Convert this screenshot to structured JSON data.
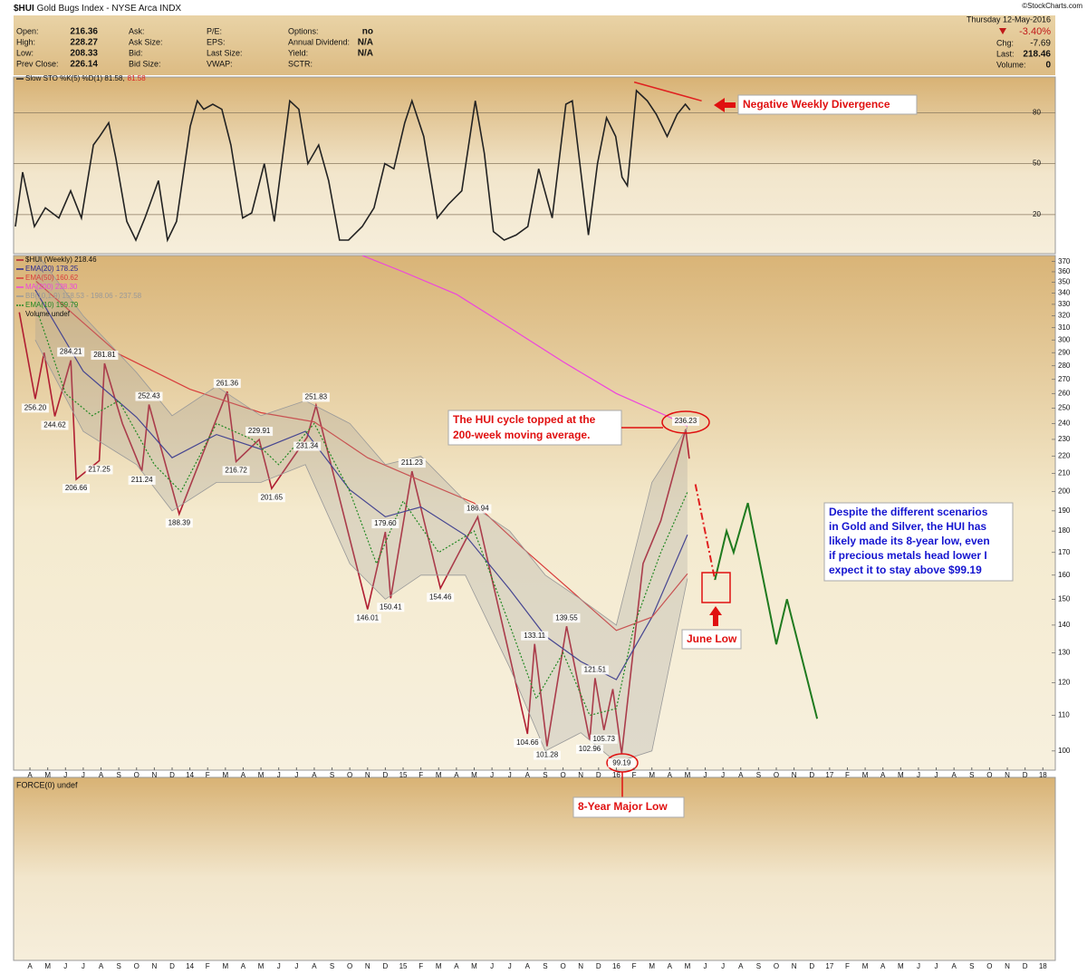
{
  "header": {
    "symbol": "$HUI",
    "title": "Gold Bugs Index - NYSE Arca INDX",
    "watermark": "©StockCharts.com",
    "fields": [
      [
        {
          "label": "Open:",
          "value": "216.36"
        },
        {
          "label": "High:",
          "value": "228.27"
        },
        {
          "label": "Low:",
          "value": "208.33"
        },
        {
          "label": "Prev Close:",
          "value": "226.14"
        }
      ],
      [
        {
          "label": "Ask:"
        },
        {
          "label": "Ask Size:"
        },
        {
          "label": "Bid:"
        },
        {
          "label": "Bid Size:"
        }
      ],
      [
        {
          "label": "P/E:"
        },
        {
          "label": "EPS:"
        },
        {
          "label": "Last Size:"
        },
        {
          "label": "VWAP:"
        }
      ],
      [
        {
          "label": "Options:",
          "value": "no"
        },
        {
          "label": "Annual Dividend:",
          "value": "N/A"
        },
        {
          "label": "Yield:",
          "value": "N/A"
        },
        {
          "label": "SCTR:"
        }
      ]
    ],
    "date": "Thursday 12-May-2016",
    "change_pct": "-3.40%",
    "chg_label": "Chg:",
    "chg": "-7.69",
    "last_label": "Last:",
    "last": "218.46",
    "volume_label": "Volume:",
    "volume": "0"
  },
  "chart_data": [
    {
      "type": "line",
      "xlim": [
        -0.92,
        57.7
      ],
      "ylim": [
        -3,
        101
      ],
      "yticks": [
        20,
        50,
        80
      ],
      "grid": true,
      "series": [
        {
          "name": "Slow STO %K(5) %D(1) 81.58,",
          "color": "#222222",
          "x": [
            -0.82,
            -0.41,
            0.25,
            0.87,
            1.63,
            2.29,
            2.9,
            3.57,
            3.92,
            4.43,
            4.84,
            5.45,
            5.96,
            6.47,
            7.23,
            7.74,
            8.25,
            9.02,
            9.42,
            9.78,
            10.29,
            10.8,
            11.31,
            11.97,
            12.48,
            13.19,
            13.75,
            14.62,
            15.13,
            15.64,
            16.25,
            16.81,
            17.42,
            17.93,
            18.7,
            19.36,
            19.97,
            20.48,
            21.09,
            21.5,
            22.16,
            22.92,
            23.54,
            24.3,
            25.06,
            25.57,
            26.08,
            26.69,
            27.36,
            28.02,
            28.63,
            29.39,
            30.16,
            30.52,
            31.43,
            31.94,
            32.45,
            32.96,
            33.32,
            33.62,
            34.13,
            34.74,
            35.25,
            35.86,
            36.42,
            36.88,
            37.14
          ],
          "values": [
            13,
            45,
            13,
            24,
            18,
            34,
            18,
            61,
            66,
            74,
            53,
            16,
            5,
            18,
            40,
            5,
            16,
            72,
            87,
            82,
            85,
            82,
            61,
            18,
            21,
            50,
            16,
            87,
            82,
            50,
            61,
            40,
            5,
            5,
            13,
            24,
            50,
            47,
            74,
            87,
            66,
            18,
            26,
            34,
            87,
            56,
            10,
            5,
            8,
            13,
            47,
            18,
            85,
            87,
            8,
            50,
            77,
            66,
            42,
            37,
            93,
            87,
            79,
            66,
            79,
            85,
            81.58
          ]
        }
      ],
      "signal": "81.58",
      "signal_color": "#dd2222",
      "divergence": {
        "color": "#e02020",
        "x": [
          34.0,
          37.8
        ],
        "values": [
          98,
          87
        ]
      },
      "annotation": "Negative Weekly Divergence"
    },
    {
      "type": "line",
      "log_scale": true,
      "xlim": [
        -0.92,
        57.7
      ],
      "ylim": [
        95,
        376
      ],
      "grid": false,
      "yticks": [
        100,
        110,
        120,
        130,
        140,
        150,
        160,
        170,
        180,
        190,
        200,
        210,
        220,
        230,
        240,
        250,
        260,
        270,
        280,
        290,
        300,
        310,
        320,
        330,
        340,
        350,
        360,
        370
      ],
      "xticks": [
        {
          "value": 0,
          "label": "A"
        },
        {
          "value": 1,
          "label": "M"
        },
        {
          "value": 2,
          "label": "J"
        },
        {
          "value": 3,
          "label": "J"
        },
        {
          "value": 4,
          "label": "A"
        },
        {
          "value": 5,
          "label": "S"
        },
        {
          "value": 6,
          "label": "O"
        },
        {
          "value": 7,
          "label": "N"
        },
        {
          "value": 8,
          "label": "D"
        },
        {
          "value": 9,
          "label": "14"
        },
        {
          "value": 10,
          "label": "F"
        },
        {
          "value": 11,
          "label": "M"
        },
        {
          "value": 12,
          "label": "A"
        },
        {
          "value": 13,
          "label": "M"
        },
        {
          "value": 14,
          "label": "J"
        },
        {
          "value": 15,
          "label": "J"
        },
        {
          "value": 16,
          "label": "A"
        },
        {
          "value": 17,
          "label": "S"
        },
        {
          "value": 18,
          "label": "O"
        },
        {
          "value": 19,
          "label": "N"
        },
        {
          "value": 20,
          "label": "D"
        },
        {
          "value": 21,
          "label": "15"
        },
        {
          "value": 22,
          "label": "F"
        },
        {
          "value": 23,
          "label": "M"
        },
        {
          "value": 24,
          "label": "A"
        },
        {
          "value": 25,
          "label": "M"
        },
        {
          "value": 26,
          "label": "J"
        },
        {
          "value": 27,
          "label": "J"
        },
        {
          "value": 28,
          "label": "A"
        },
        {
          "value": 29,
          "label": "S"
        },
        {
          "value": 30,
          "label": "O"
        },
        {
          "value": 31,
          "label": "N"
        },
        {
          "value": 32,
          "label": "D"
        },
        {
          "value": 33,
          "label": "16"
        },
        {
          "value": 34,
          "label": "F"
        },
        {
          "value": 35,
          "label": "M"
        },
        {
          "value": 36,
          "label": "A"
        },
        {
          "value": 37,
          "label": "M"
        },
        {
          "value": 38,
          "label": "J"
        },
        {
          "value": 39,
          "label": "J"
        },
        {
          "value": 40,
          "label": "A"
        },
        {
          "value": 41,
          "label": "S"
        },
        {
          "value": 42,
          "label": "O"
        },
        {
          "value": 43,
          "label": "N"
        },
        {
          "value": 44,
          "label": "D"
        },
        {
          "value": 45,
          "label": "17"
        },
        {
          "value": 46,
          "label": "F"
        },
        {
          "value": 47,
          "label": "M"
        },
        {
          "value": 48,
          "label": "A"
        },
        {
          "value": 49,
          "label": "M"
        },
        {
          "value": 50,
          "label": "J"
        },
        {
          "value": 51,
          "label": "J"
        },
        {
          "value": 52,
          "label": "A"
        },
        {
          "value": 53,
          "label": "S"
        },
        {
          "value": 54,
          "label": "O"
        },
        {
          "value": 55,
          "label": "N"
        },
        {
          "value": 56,
          "label": "D"
        },
        {
          "value": 57,
          "label": "18"
        }
      ],
      "series": [
        {
          "name": "$HUI (Weekly) 218.46",
          "color": "#b01e32",
          "x": [
            -0.6,
            0.3,
            0.8,
            1.4,
            2.3,
            2.6,
            3.9,
            4.2,
            5.2,
            6.3,
            6.7,
            8.4,
            11.1,
            11.6,
            12.9,
            13.6,
            15.6,
            16.1,
            19.0,
            20.0,
            20.3,
            21.5,
            23.1,
            25.2,
            28.0,
            28.4,
            29.1,
            30.2,
            31.5,
            31.8,
            32.3,
            32.8,
            33.3,
            34.5,
            35.5,
            36.9,
            37.1
          ],
          "values": [
            323,
            256.2,
            290,
            244.62,
            284.21,
            206.66,
            217.25,
            281.81,
            240,
            211.24,
            252.43,
            188.39,
            261.36,
            216.72,
            229.91,
            201.65,
            231.34,
            251.83,
            146.01,
            179.6,
            150.41,
            211.23,
            154.46,
            186.94,
            104.66,
            133.11,
            101.28,
            139.55,
            102.96,
            121.51,
            105.73,
            118,
            99.19,
            165,
            185,
            236.23,
            218.46
          ],
          "value_labels": [
            null,
            "256.20",
            null,
            "244.62",
            "284.21",
            "206.66",
            "217.25",
            "281.81",
            null,
            "211.24",
            "252.43",
            "188.39",
            "261.36",
            "216.72",
            "229.91",
            "201.65",
            "231.34",
            "251.83",
            "146.01",
            "179.60",
            "150.41",
            "211.23",
            "154.46",
            "186.94",
            "104.66",
            "133.11",
            "101.28",
            "139.55",
            "102.96",
            "121.51",
            "105.73",
            null,
            "99.19",
            null,
            null,
            "236.23",
            null
          ]
        },
        {
          "name": "EMA(20) 178.25",
          "color": "#2b2b8f",
          "x": [
            0.3,
            3,
            6,
            8,
            10.5,
            13,
            15.5,
            18,
            20,
            22,
            24.5,
            27,
            29,
            31,
            33,
            35,
            37
          ],
          "values": [
            343,
            276,
            244,
            219,
            233,
            224,
            235,
            201,
            187,
            192,
            178,
            154,
            136,
            127,
            121,
            143,
            178.25
          ]
        },
        {
          "name": "EMA(50) 160.62",
          "color": "#d83c3c",
          "x": [
            0.35,
            5,
            9,
            13,
            16,
            19,
            22,
            25,
            28,
            31,
            33,
            35,
            37
          ],
          "values": [
            351,
            289,
            263,
            247,
            241,
            219,
            206,
            194,
            170,
            150,
            138,
            143,
            160.62
          ]
        },
        {
          "name": "MA(200) 238.30",
          "color": "#ee44dd",
          "x": [
            18.7,
            21,
            24,
            27,
            30,
            33,
            36,
            37
          ],
          "values": [
            376,
            360,
            339,
            310,
            283,
            260,
            244,
            238.3
          ]
        },
        {
          "name": "BB(10,1.9) 158.53 - 198.06 - 237.58",
          "color": "#999999",
          "x": [
            0.3,
            3,
            6,
            8,
            10.5,
            13,
            15.5,
            18,
            20,
            22,
            24.5,
            27,
            29,
            31,
            33,
            35,
            37
          ],
          "upper": [
            380,
            320,
            275,
            245,
            265,
            245,
            255,
            240,
            215,
            220,
            195,
            180,
            160,
            150,
            140,
            205,
            237.58
          ],
          "lower": [
            300,
            235,
            215,
            190,
            205,
            205,
            215,
            165,
            150,
            160,
            160,
            125,
            100,
            105,
            97,
            100,
            158.53
          ]
        },
        {
          "name": "EMA(10) 199.79",
          "color": "#228822",
          "dotted": true,
          "x": [
            0.5,
            2,
            3.5,
            5,
            7,
            8.5,
            10.5,
            12.5,
            14,
            16,
            18,
            19.5,
            21,
            23,
            25,
            27,
            28.5,
            30,
            31.5,
            33,
            34,
            35.5,
            37
          ],
          "values": [
            320,
            260,
            245,
            255,
            215,
            200,
            240,
            230,
            215,
            240,
            200,
            165,
            195,
            170,
            180,
            140,
            115,
            130,
            110,
            112,
            140,
            170,
            199.79
          ]
        }
      ],
      "legend_extra": "Volume undef",
      "projections": [
        {
          "color": "#e02020",
          "dashed": true,
          "x": [
            37.45,
            38.55
          ],
          "values": [
            204,
            158
          ]
        },
        {
          "color": "#1f7a1f",
          "x": [
            38.55,
            39.2,
            39.6,
            40.4,
            42.0,
            42.6,
            44.3
          ],
          "values": [
            158,
            180,
            170,
            194,
            133,
            150,
            109
          ]
        }
      ],
      "annotations": {
        "top_note": [
          "The HUI cycle topped at the",
          "200-week moving average."
        ],
        "outlook_note": [
          "Despite the different scenarios",
          "in Gold and Silver, the HUI has",
          "likely made its 8-year low, even",
          "if precious metals head lower I",
          "expect it to stay above $99.19"
        ],
        "june_low": "June Low",
        "major_low": "8-Year Major Low"
      }
    },
    {
      "type": "line",
      "label": "FORCE(0) undef",
      "series": []
    }
  ]
}
